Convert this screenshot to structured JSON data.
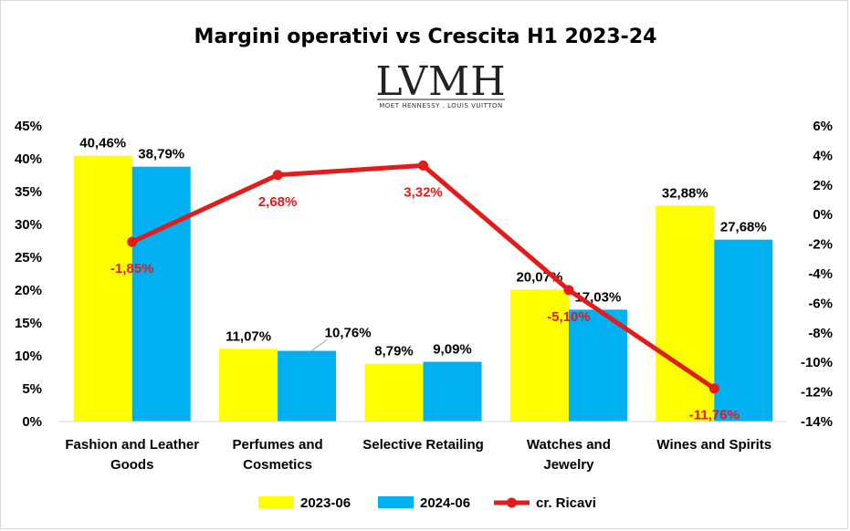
{
  "chart_data": {
    "type": "bar",
    "title": "Margini operativi vs Crescita H1 2023-24",
    "logo": {
      "main": "LVMH",
      "sub": "MOET HENNESSY . LOUIS VUITTON"
    },
    "categories": [
      [
        "Fashion and Leather",
        "Goods"
      ],
      [
        "Perfumes and",
        "Cosmetics"
      ],
      [
        "Selective Retailing"
      ],
      [
        "Watches and",
        "Jewelry"
      ],
      [
        "Wines and Spirits"
      ]
    ],
    "series": [
      {
        "name": "2023-06",
        "type": "bar",
        "axis": "left",
        "color": "#ffff00",
        "values": [
          40.46,
          11.07,
          8.79,
          20.07,
          32.88
        ],
        "labels": [
          "40,46%",
          "11,07%",
          "8,79%",
          "20,07%",
          "32,88%"
        ]
      },
      {
        "name": "2024-06",
        "type": "bar",
        "axis": "left",
        "color": "#00b0f0",
        "values": [
          38.79,
          10.76,
          9.09,
          17.03,
          27.68
        ],
        "labels": [
          "38,79%",
          "10,76%",
          "9,09%",
          "17,03%",
          "27,68%"
        ]
      },
      {
        "name": "cr. Ricavi",
        "type": "line",
        "axis": "right",
        "color": "#e31b1b",
        "values": [
          -1.85,
          2.68,
          3.32,
          -5.1,
          -11.76
        ],
        "labels": [
          "-1,85%",
          "2,68%",
          "3,32%",
          "-5,10%",
          "-11,76%"
        ]
      }
    ],
    "y_left": {
      "min": 0,
      "max": 45,
      "step": 5,
      "ticks": [
        "0%",
        "5%",
        "10%",
        "15%",
        "20%",
        "25%",
        "30%",
        "35%",
        "40%",
        "45%"
      ]
    },
    "y_right": {
      "min": -14,
      "max": 6,
      "step": 2,
      "ticks": [
        "-14%",
        "-12%",
        "-10%",
        "-8%",
        "-6%",
        "-4%",
        "-2%",
        "0%",
        "2%",
        "4%",
        "6%"
      ]
    },
    "grid": false,
    "legend": "bottom"
  }
}
